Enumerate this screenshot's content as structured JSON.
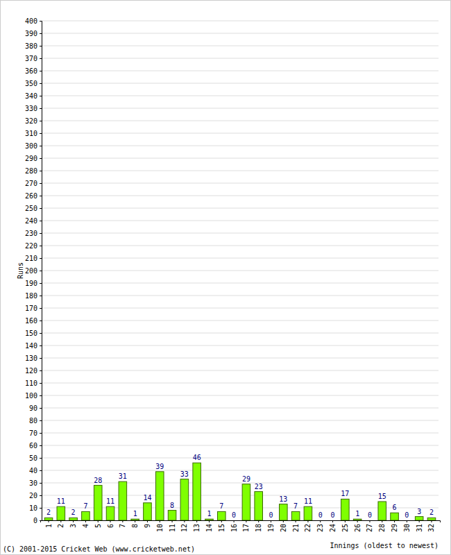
{
  "chart_data": {
    "type": "bar",
    "x_label": "Innings (oldest to newest)",
    "y_label": "Runs",
    "annotations": [
      "(C) 2001-2015 Cricket Web (www.cricketweb.net)"
    ],
    "categories": [
      "1",
      "2",
      "3",
      "4",
      "5",
      "6",
      "7",
      "8",
      "9",
      "10",
      "11",
      "12",
      "13",
      "14",
      "15",
      "16",
      "17",
      "18",
      "19",
      "20",
      "21",
      "22",
      "23",
      "24",
      "25",
      "26",
      "27",
      "28",
      "29",
      "30",
      "31",
      "32"
    ],
    "values": [
      2,
      11,
      2,
      7,
      28,
      11,
      31,
      1,
      14,
      39,
      8,
      33,
      46,
      1,
      7,
      0,
      29,
      23,
      0,
      13,
      7,
      11,
      0,
      0,
      17,
      1,
      0,
      15,
      6,
      0,
      3,
      2
    ],
    "color": "#7fff00",
    "ylim": [
      0,
      400
    ],
    "yticks": [
      0,
      10,
      20,
      30,
      40,
      50,
      60,
      70,
      80,
      90,
      100,
      110,
      120,
      130,
      140,
      150,
      160,
      170,
      180,
      190,
      200,
      210,
      220,
      230,
      240,
      250,
      260,
      270,
      280,
      290,
      300,
      310,
      320,
      330,
      340,
      350,
      360,
      370,
      380,
      390,
      400
    ],
    "grid": true,
    "data_labels": true
  }
}
